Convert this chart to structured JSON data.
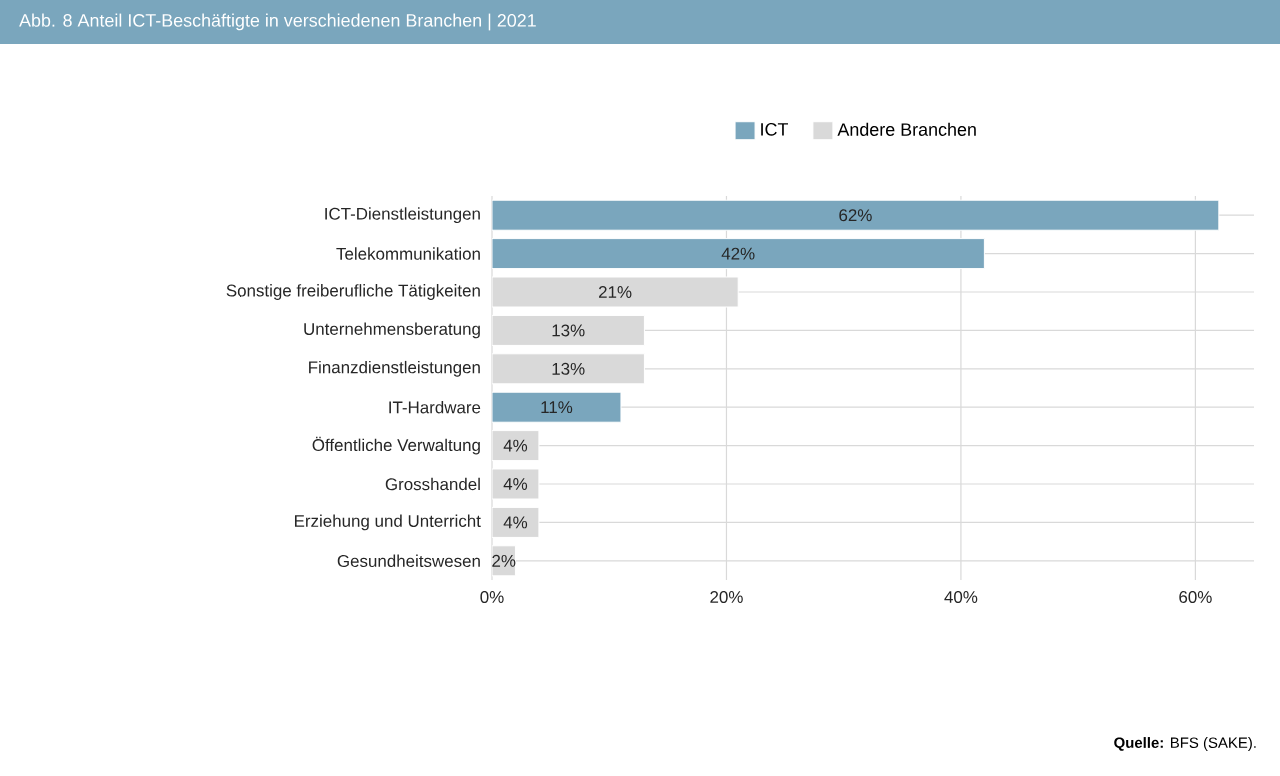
{
  "chart_data": {
    "type": "bar",
    "orientation": "horizontal",
    "title": "Abb. 8   Anteil ICT-Beschäftigte in verschiedenen Branchen | 2021",
    "categories": [
      "ICT-Dienstleistungen",
      "Telekommunikation",
      "Sonstige freiberufliche Tätigkeiten",
      "Unternehmensberatung",
      "Finanzdienstleistungen",
      "IT-Hardware",
      "Öffentliche Verwaltung",
      "Grosshandel",
      "Erziehung und Unterricht",
      "Gesundheitswesen"
    ],
    "series": [
      {
        "name": "ICT",
        "color": "#7aa6bd",
        "values": [
          62,
          42,
          null,
          null,
          null,
          11,
          null,
          null,
          null,
          null
        ],
        "value_labels": [
          "62%",
          "42%",
          null,
          null,
          null,
          "11%",
          null,
          null,
          null,
          null
        ]
      },
      {
        "name": "Andere Branchen",
        "color": "#d9d9d9",
        "values": [
          null,
          null,
          21,
          13,
          13,
          null,
          4,
          4,
          4,
          2
        ],
        "value_labels": [
          null,
          null,
          "21%",
          "13%",
          "13%",
          null,
          "4%",
          "4%",
          "4%",
          "2%"
        ]
      }
    ],
    "xlim": [
      0,
      65
    ],
    "xticks": [
      {
        "value": 0,
        "label": "0%"
      },
      {
        "value": 20,
        "label": "20%"
      },
      {
        "value": 40,
        "label": "40%"
      },
      {
        "value": 60,
        "label": "60%"
      }
    ],
    "grid": true,
    "legend": "top",
    "annotations": [
      "**Quelle:** BFS (SAKE)."
    ]
  }
}
